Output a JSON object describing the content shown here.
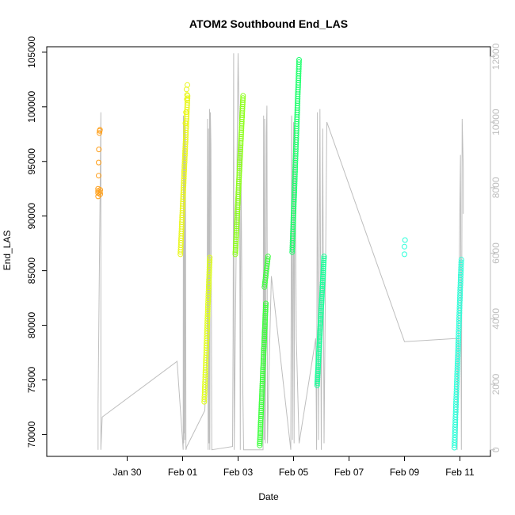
{
  "chart_data": {
    "type": "scatter",
    "title": "ATOM2 Southbound End_LAS",
    "xlabel": "Date",
    "ylabel": "End_LAS",
    "xlim": [
      -2.9,
      13.1
    ],
    "ylim": [
      68000,
      105500
    ],
    "y2lim": [
      -200,
      12300
    ],
    "x_axis_unit": "days relative to Jan 30",
    "x_ticks": [
      {
        "value": 0,
        "label": "Jan 30"
      },
      {
        "value": 2,
        "label": "Feb 01"
      },
      {
        "value": 4,
        "label": "Feb 03"
      },
      {
        "value": 6,
        "label": "Feb 05"
      },
      {
        "value": 8,
        "label": "Feb 07"
      },
      {
        "value": 10,
        "label": "Feb 09"
      },
      {
        "value": 12,
        "label": "Feb 11"
      }
    ],
    "y_ticks": [
      70000,
      75000,
      80000,
      85000,
      90000,
      95000,
      100000,
      105000
    ],
    "y2_ticks": [
      0,
      2000,
      4000,
      6000,
      8000,
      10000,
      12000
    ],
    "colors": {
      "line": "#bebebe",
      "run1": "#ff9f1a",
      "run2": "#e9f71a",
      "run3": "#e0ff1a",
      "run4": "#8cff1a",
      "run5": "#3dff3d",
      "run6": "#1aff6a",
      "run7": "#1aff9a",
      "run8": "#2affd9"
    },
    "point_series": [
      {
        "name": "run1",
        "color": "#ff9f1a",
        "x": [
          -1.05,
          -1.05,
          -1.05,
          -1.05,
          -1.03,
          -1.03,
          -1.02,
          -1.0,
          -0.99,
          -0.98,
          -0.98,
          -0.97,
          -0.97
        ],
        "y": [
          91800,
          92100,
          92300,
          92500,
          93700,
          94900,
          96100,
          97600,
          97800,
          97900,
          92200,
          92400,
          92000
        ]
      },
      {
        "name": "run2",
        "color": "#e9f71a",
        "range": {
          "x0": 1.92,
          "x1": 2.18,
          "y0": 86500,
          "y1": 101000,
          "n": 70
        }
      },
      {
        "name": "run2-top",
        "color": "#e9f71a",
        "x": [
          2.1,
          2.12,
          2.15,
          2.14,
          2.17,
          2.16
        ],
        "y": [
          98500,
          99500,
          100700,
          101600,
          102000,
          101100
        ]
      },
      {
        "name": "run3",
        "color": "#e0ff1a",
        "range": {
          "x0": 2.78,
          "x1": 2.98,
          "y0": 73000,
          "y1": 86200,
          "n": 60
        }
      },
      {
        "name": "run4",
        "color": "#8cff1a",
        "range": {
          "x0": 3.9,
          "x1": 4.18,
          "y0": 86500,
          "y1": 101000,
          "n": 75
        }
      },
      {
        "name": "run5",
        "color": "#3dff3d",
        "range": {
          "x0": 4.78,
          "x1": 5.0,
          "y0": 69000,
          "y1": 82000,
          "n": 70
        }
      },
      {
        "name": "run5-upper",
        "color": "#3dff3d",
        "range": {
          "x0": 4.95,
          "x1": 5.08,
          "y0": 83500,
          "y1": 86300,
          "n": 14
        }
      },
      {
        "name": "run6",
        "color": "#1aff6a",
        "range": {
          "x0": 5.95,
          "x1": 6.2,
          "y0": 86700,
          "y1": 104300,
          "n": 85
        }
      },
      {
        "name": "run7",
        "color": "#1aff9a",
        "range": {
          "x0": 6.85,
          "x1": 7.1,
          "y0": 74500,
          "y1": 86300,
          "n": 65
        }
      },
      {
        "name": "run8",
        "color": "#2affd9",
        "range": {
          "x0": 11.8,
          "x1": 12.05,
          "y0": 68800,
          "y1": 86000,
          "n": 75
        }
      },
      {
        "name": "run8-isolated",
        "color": "#2affd9",
        "x": [
          10.0,
          10.0,
          10.02
        ],
        "y": [
          86500,
          87200,
          87800
        ]
      }
    ],
    "line_series_right_axis": {
      "name": "secondary",
      "color": "#bebebe",
      "x": [
        -1.05,
        -1.05,
        -0.95,
        -0.95,
        -0.9,
        1.8,
        2.02,
        2.03,
        2.04,
        2.05,
        2.06,
        2.07,
        2.08,
        2.09,
        2.1,
        2.12,
        2.15,
        2.8,
        2.88,
        2.9,
        2.92,
        2.93,
        2.95,
        2.97,
        2.98,
        3.0,
        3.02,
        3.05,
        3.8,
        3.82,
        3.84,
        3.86,
        4.0,
        4.05,
        4.08,
        4.1,
        4.15,
        4.2,
        4.9,
        4.92,
        4.94,
        4.96,
        4.98,
        5.0,
        5.02,
        5.04,
        5.06,
        5.1,
        5.2,
        5.9,
        5.93,
        5.96,
        6.0,
        6.02,
        6.05,
        6.1,
        6.2,
        6.8,
        6.83,
        6.86,
        6.9,
        6.95,
        7.0,
        7.05,
        7.1,
        7.2,
        10.0,
        11.9,
        11.9,
        12.02,
        12.05,
        12.08,
        12.12,
        12.12
      ],
      "y": [
        0,
        1400,
        10300,
        0,
        1000,
        2700,
        0,
        10200,
        200,
        10000,
        500,
        9900,
        300,
        10200,
        9600,
        0,
        100,
        1200,
        3200,
        10100,
        0,
        9800,
        200,
        10400,
        0,
        10300,
        9300,
        0,
        100,
        3400,
        12100,
        0,
        12100,
        9400,
        0,
        9300,
        3000,
        0,
        0,
        10200,
        300,
        10100,
        200,
        3400,
        9600,
        10500,
        200,
        1900,
        5300,
        0,
        10200,
        300,
        10000,
        200,
        9800,
        3400,
        200,
        3400,
        0,
        10300,
        300,
        10400,
        0,
        9800,
        200,
        10000,
        3300,
        3400,
        0,
        9000,
        0,
        10100,
        8600,
        7200
      ]
    }
  }
}
